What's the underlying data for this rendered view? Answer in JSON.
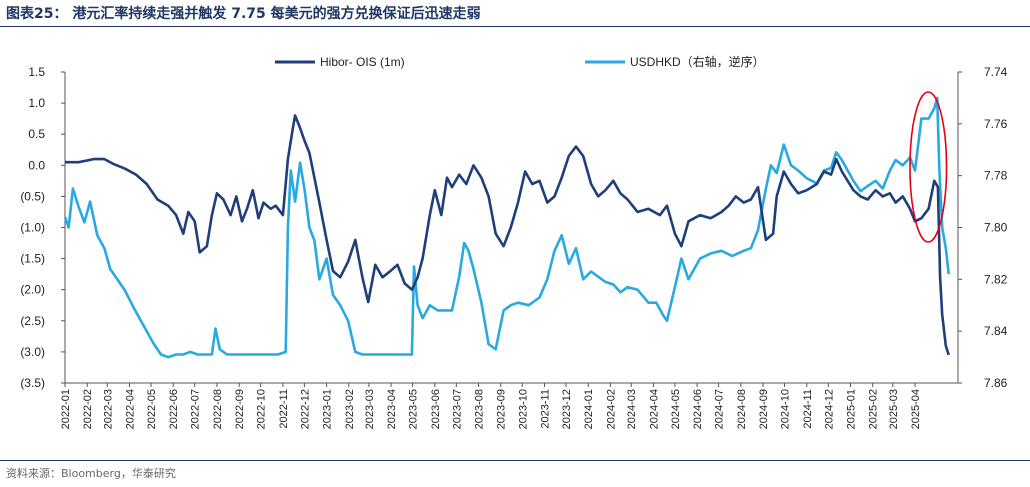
{
  "figure": {
    "title": "图表25：  港元汇率持续走强并触发 7.75 每美元的强方兑换保证后迅速走弱",
    "source": "资料来源：Bloomberg，华泰研究"
  },
  "chart_data": {
    "type": "line",
    "title": "",
    "x_categories": [
      "2022-01",
      "2022-02",
      "2022-03",
      "2022-04",
      "2022-05",
      "2022-06",
      "2022-07",
      "2022-08",
      "2022-09",
      "2022-10",
      "2022-11",
      "2022-12",
      "2023-01",
      "2023-02",
      "2023-03",
      "2023-04",
      "2023-05",
      "2023-06",
      "2023-07",
      "2023-08",
      "2023-09",
      "2023-10",
      "2023-11",
      "2023-12",
      "2024-01",
      "2024-02",
      "2024-03",
      "2024-04",
      "2024-05",
      "2024-06",
      "2024-07",
      "2024-08",
      "2024-09",
      "2024-10",
      "2024-11",
      "2024-12",
      "2025-01",
      "2025-02",
      "2025-03",
      "2025-04"
    ],
    "left_axis": {
      "ylim": [
        -3.5,
        1.5
      ],
      "tick_labels": [
        "1.5",
        "1.0",
        "0.5",
        "0.0",
        "(0.5)",
        "(1.0)",
        "(1.5)",
        "(2.0)",
        "(2.5)",
        "(3.0)",
        "(3.5)"
      ]
    },
    "right_axis": {
      "ylim": [
        7.74,
        7.86
      ],
      "inverted": true,
      "tick_labels": [
        "7.74",
        "7.76",
        "7.78",
        "7.80",
        "7.82",
        "7.84",
        "7.86"
      ]
    },
    "legend": {
      "placement": "top"
    },
    "series": [
      {
        "name": "Hibor- OIS (1m)",
        "axis": "left",
        "color": "#1f3f7a",
        "points": [
          [
            "2022-01-01",
            0.05
          ],
          [
            "2022-01-20",
            0.05
          ],
          [
            "2022-02-10",
            0.1
          ],
          [
            "2022-02-25",
            0.1
          ],
          [
            "2022-03-10",
            0.02
          ],
          [
            "2022-03-25",
            -0.05
          ],
          [
            "2022-04-10",
            -0.15
          ],
          [
            "2022-04-25",
            -0.3
          ],
          [
            "2022-05-10",
            -0.55
          ],
          [
            "2022-05-25",
            -0.65
          ],
          [
            "2022-06-05",
            -0.8
          ],
          [
            "2022-06-15",
            -1.1
          ],
          [
            "2022-06-22",
            -0.75
          ],
          [
            "2022-07-01",
            -0.9
          ],
          [
            "2022-07-08",
            -1.4
          ],
          [
            "2022-07-18",
            -1.3
          ],
          [
            "2022-07-25",
            -0.8
          ],
          [
            "2022-08-01",
            -0.45
          ],
          [
            "2022-08-10",
            -0.55
          ],
          [
            "2022-08-20",
            -0.8
          ],
          [
            "2022-08-28",
            -0.5
          ],
          [
            "2022-09-05",
            -0.9
          ],
          [
            "2022-09-12",
            -0.7
          ],
          [
            "2022-09-20",
            -0.4
          ],
          [
            "2022-09-28",
            -0.85
          ],
          [
            "2022-10-05",
            -0.6
          ],
          [
            "2022-10-15",
            -0.7
          ],
          [
            "2022-10-22",
            -0.65
          ],
          [
            "2022-11-01",
            -0.8
          ],
          [
            "2022-11-08",
            0.1
          ],
          [
            "2022-11-15",
            0.6
          ],
          [
            "2022-11-18",
            0.8
          ],
          [
            "2022-11-25",
            0.6
          ],
          [
            "2022-12-01",
            0.4
          ],
          [
            "2022-12-08",
            0.2
          ],
          [
            "2022-12-15",
            -0.2
          ],
          [
            "2022-12-22",
            -0.6
          ],
          [
            "2023-01-01",
            -1.2
          ],
          [
            "2023-01-10",
            -1.7
          ],
          [
            "2023-01-20",
            -1.8
          ],
          [
            "2023-01-31",
            -1.55
          ],
          [
            "2023-02-10",
            -1.2
          ],
          [
            "2023-02-20",
            -1.8
          ],
          [
            "2023-02-28",
            -2.2
          ],
          [
            "2023-03-10",
            -1.6
          ],
          [
            "2023-03-20",
            -1.8
          ],
          [
            "2023-03-31",
            -1.7
          ],
          [
            "2023-04-10",
            -1.6
          ],
          [
            "2023-04-20",
            -1.9
          ],
          [
            "2023-04-30",
            -2.0
          ],
          [
            "2023-05-08",
            -1.8
          ],
          [
            "2023-05-15",
            -1.5
          ],
          [
            "2023-05-25",
            -0.8
          ],
          [
            "2023-06-01",
            -0.4
          ],
          [
            "2023-06-10",
            -0.8
          ],
          [
            "2023-06-18",
            -0.2
          ],
          [
            "2023-06-25",
            -0.35
          ],
          [
            "2023-07-05",
            -0.15
          ],
          [
            "2023-07-15",
            -0.3
          ],
          [
            "2023-07-25",
            0.0
          ],
          [
            "2023-08-05",
            -0.2
          ],
          [
            "2023-08-15",
            -0.5
          ],
          [
            "2023-08-25",
            -1.1
          ],
          [
            "2023-09-05",
            -1.3
          ],
          [
            "2023-09-15",
            -1.0
          ],
          [
            "2023-09-25",
            -0.6
          ],
          [
            "2023-10-05",
            -0.1
          ],
          [
            "2023-10-15",
            -0.3
          ],
          [
            "2023-10-25",
            -0.25
          ],
          [
            "2023-11-05",
            -0.6
          ],
          [
            "2023-11-15",
            -0.5
          ],
          [
            "2023-11-25",
            -0.2
          ],
          [
            "2023-12-05",
            0.15
          ],
          [
            "2023-12-15",
            0.3
          ],
          [
            "2023-12-25",
            0.15
          ],
          [
            "2024-01-05",
            -0.3
          ],
          [
            "2024-01-15",
            -0.5
          ],
          [
            "2024-01-25",
            -0.4
          ],
          [
            "2024-02-05",
            -0.25
          ],
          [
            "2024-02-15",
            -0.45
          ],
          [
            "2024-02-25",
            -0.55
          ],
          [
            "2024-03-10",
            -0.75
          ],
          [
            "2024-03-25",
            -0.7
          ],
          [
            "2024-04-10",
            -0.8
          ],
          [
            "2024-04-20",
            -0.65
          ],
          [
            "2024-05-01",
            -1.1
          ],
          [
            "2024-05-10",
            -1.3
          ],
          [
            "2024-05-20",
            -0.9
          ],
          [
            "2024-06-05",
            -0.8
          ],
          [
            "2024-06-20",
            -0.85
          ],
          [
            "2024-07-05",
            -0.75
          ],
          [
            "2024-07-15",
            -0.65
          ],
          [
            "2024-07-25",
            -0.5
          ],
          [
            "2024-08-05",
            -0.6
          ],
          [
            "2024-08-15",
            -0.55
          ],
          [
            "2024-08-25",
            -0.35
          ],
          [
            "2024-09-05",
            -1.2
          ],
          [
            "2024-09-15",
            -1.1
          ],
          [
            "2024-09-20",
            -0.5
          ],
          [
            "2024-09-30",
            -0.1
          ],
          [
            "2024-10-10",
            -0.3
          ],
          [
            "2024-10-20",
            -0.45
          ],
          [
            "2024-11-01",
            -0.4
          ],
          [
            "2024-11-15",
            -0.3
          ],
          [
            "2024-11-25",
            -0.1
          ],
          [
            "2024-12-05",
            -0.15
          ],
          [
            "2024-12-12",
            0.1
          ],
          [
            "2024-12-20",
            -0.1
          ],
          [
            "2025-01-05",
            -0.4
          ],
          [
            "2025-01-15",
            -0.5
          ],
          [
            "2025-01-25",
            -0.55
          ],
          [
            "2025-02-05",
            -0.4
          ],
          [
            "2025-02-15",
            -0.5
          ],
          [
            "2025-02-25",
            -0.45
          ],
          [
            "2025-03-05",
            -0.6
          ],
          [
            "2025-03-15",
            -0.5
          ],
          [
            "2025-03-25",
            -0.7
          ],
          [
            "2025-04-01",
            -0.9
          ],
          [
            "2025-04-10",
            -0.85
          ],
          [
            "2025-04-20",
            -0.7
          ],
          [
            "2025-04-28",
            -0.25
          ],
          [
            "2025-05-03",
            -0.35
          ],
          [
            "2025-05-06",
            -1.8
          ],
          [
            "2025-05-09",
            -2.4
          ],
          [
            "2025-05-14",
            -2.9
          ],
          [
            "2025-05-18",
            -3.05
          ]
        ]
      },
      {
        "name": "USDHKD（右轴，逆序）",
        "axis": "right",
        "color": "#29a9e1",
        "points": [
          [
            "2022-01-01",
            7.796
          ],
          [
            "2022-01-06",
            7.8
          ],
          [
            "2022-01-12",
            7.785
          ],
          [
            "2022-01-20",
            7.792
          ],
          [
            "2022-01-28",
            7.798
          ],
          [
            "2022-02-05",
            7.79
          ],
          [
            "2022-02-15",
            7.803
          ],
          [
            "2022-02-25",
            7.808
          ],
          [
            "2022-03-05",
            7.816
          ],
          [
            "2022-03-15",
            7.82
          ],
          [
            "2022-03-25",
            7.824
          ],
          [
            "2022-04-05",
            7.83
          ],
          [
            "2022-04-15",
            7.835
          ],
          [
            "2022-04-25",
            7.84
          ],
          [
            "2022-05-05",
            7.845
          ],
          [
            "2022-05-15",
            7.849
          ],
          [
            "2022-05-25",
            7.85
          ],
          [
            "2022-06-05",
            7.849
          ],
          [
            "2022-06-15",
            7.849
          ],
          [
            "2022-06-25",
            7.848
          ],
          [
            "2022-07-05",
            7.849
          ],
          [
            "2022-07-15",
            7.849
          ],
          [
            "2022-07-25",
            7.849
          ],
          [
            "2022-07-30",
            7.839
          ],
          [
            "2022-08-05",
            7.847
          ],
          [
            "2022-08-15",
            7.849
          ],
          [
            "2022-08-25",
            7.849
          ],
          [
            "2022-09-10",
            7.849
          ],
          [
            "2022-09-25",
            7.849
          ],
          [
            "2022-10-10",
            7.849
          ],
          [
            "2022-10-25",
            7.849
          ],
          [
            "2022-11-05",
            7.848
          ],
          [
            "2022-11-08",
            7.8
          ],
          [
            "2022-11-12",
            7.778
          ],
          [
            "2022-11-18",
            7.79
          ],
          [
            "2022-11-25",
            7.775
          ],
          [
            "2022-12-01",
            7.785
          ],
          [
            "2022-12-08",
            7.8
          ],
          [
            "2022-12-15",
            7.805
          ],
          [
            "2022-12-22",
            7.82
          ],
          [
            "2023-01-01",
            7.812
          ],
          [
            "2023-01-10",
            7.826
          ],
          [
            "2023-01-20",
            7.83
          ],
          [
            "2023-01-31",
            7.836
          ],
          [
            "2023-02-10",
            7.848
          ],
          [
            "2023-02-20",
            7.849
          ],
          [
            "2023-03-05",
            7.849
          ],
          [
            "2023-03-20",
            7.849
          ],
          [
            "2023-04-05",
            7.849
          ],
          [
            "2023-04-20",
            7.849
          ],
          [
            "2023-04-30",
            7.849
          ],
          [
            "2023-05-03",
            7.815
          ],
          [
            "2023-05-08",
            7.83
          ],
          [
            "2023-05-15",
            7.835
          ],
          [
            "2023-05-25",
            7.83
          ],
          [
            "2023-06-05",
            7.832
          ],
          [
            "2023-06-15",
            7.832
          ],
          [
            "2023-06-25",
            7.832
          ],
          [
            "2023-07-05",
            7.819
          ],
          [
            "2023-07-12",
            7.806
          ],
          [
            "2023-07-18",
            7.809
          ],
          [
            "2023-07-25",
            7.816
          ],
          [
            "2023-08-05",
            7.829
          ],
          [
            "2023-08-15",
            7.845
          ],
          [
            "2023-08-25",
            7.847
          ],
          [
            "2023-09-05",
            7.832
          ],
          [
            "2023-09-15",
            7.83
          ],
          [
            "2023-09-25",
            7.829
          ],
          [
            "2023-10-10",
            7.83
          ],
          [
            "2023-10-25",
            7.827
          ],
          [
            "2023-11-05",
            7.82
          ],
          [
            "2023-11-15",
            7.809
          ],
          [
            "2023-11-25",
            7.803
          ],
          [
            "2023-12-05",
            7.814
          ],
          [
            "2023-12-15",
            7.808
          ],
          [
            "2023-12-25",
            7.82
          ],
          [
            "2024-01-05",
            7.817
          ],
          [
            "2024-01-15",
            7.819
          ],
          [
            "2024-01-25",
            7.821
          ],
          [
            "2024-02-05",
            7.822
          ],
          [
            "2024-02-15",
            7.825
          ],
          [
            "2024-02-25",
            7.823
          ],
          [
            "2024-03-10",
            7.824
          ],
          [
            "2024-03-25",
            7.829
          ],
          [
            "2024-04-05",
            7.829
          ],
          [
            "2024-04-15",
            7.834
          ],
          [
            "2024-04-20",
            7.836
          ],
          [
            "2024-05-01",
            7.823
          ],
          [
            "2024-05-10",
            7.812
          ],
          [
            "2024-05-20",
            7.82
          ],
          [
            "2024-06-05",
            7.812
          ],
          [
            "2024-06-20",
            7.81
          ],
          [
            "2024-07-05",
            7.809
          ],
          [
            "2024-07-20",
            7.811
          ],
          [
            "2024-08-05",
            7.809
          ],
          [
            "2024-08-15",
            7.808
          ],
          [
            "2024-08-25",
            7.801
          ],
          [
            "2024-09-05",
            7.785
          ],
          [
            "2024-09-12",
            7.776
          ],
          [
            "2024-09-20",
            7.779
          ],
          [
            "2024-09-30",
            7.768
          ],
          [
            "2024-10-10",
            7.776
          ],
          [
            "2024-10-20",
            7.778
          ],
          [
            "2024-11-01",
            7.781
          ],
          [
            "2024-11-15",
            7.783
          ],
          [
            "2024-11-25",
            7.778
          ],
          [
            "2024-12-05",
            7.777
          ],
          [
            "2024-12-12",
            7.771
          ],
          [
            "2024-12-20",
            7.774
          ],
          [
            "2025-01-05",
            7.782
          ],
          [
            "2025-01-15",
            7.786
          ],
          [
            "2025-01-25",
            7.784
          ],
          [
            "2025-02-05",
            7.782
          ],
          [
            "2025-02-15",
            7.785
          ],
          [
            "2025-02-25",
            7.778
          ],
          [
            "2025-03-05",
            7.774
          ],
          [
            "2025-03-15",
            7.776
          ],
          [
            "2025-03-25",
            7.773
          ],
          [
            "2025-04-01",
            7.778
          ],
          [
            "2025-04-10",
            7.758
          ],
          [
            "2025-04-20",
            7.758
          ],
          [
            "2025-04-28",
            7.754
          ],
          [
            "2025-05-02",
            7.75
          ],
          [
            "2025-05-05",
            7.778
          ],
          [
            "2025-05-09",
            7.8
          ],
          [
            "2025-05-14",
            7.808
          ],
          [
            "2025-05-18",
            7.818
          ]
        ]
      }
    ],
    "annotation": {
      "shape": "ellipse",
      "color": "#e60012",
      "from": "2025-03-25",
      "to": "2025-05-15"
    }
  }
}
